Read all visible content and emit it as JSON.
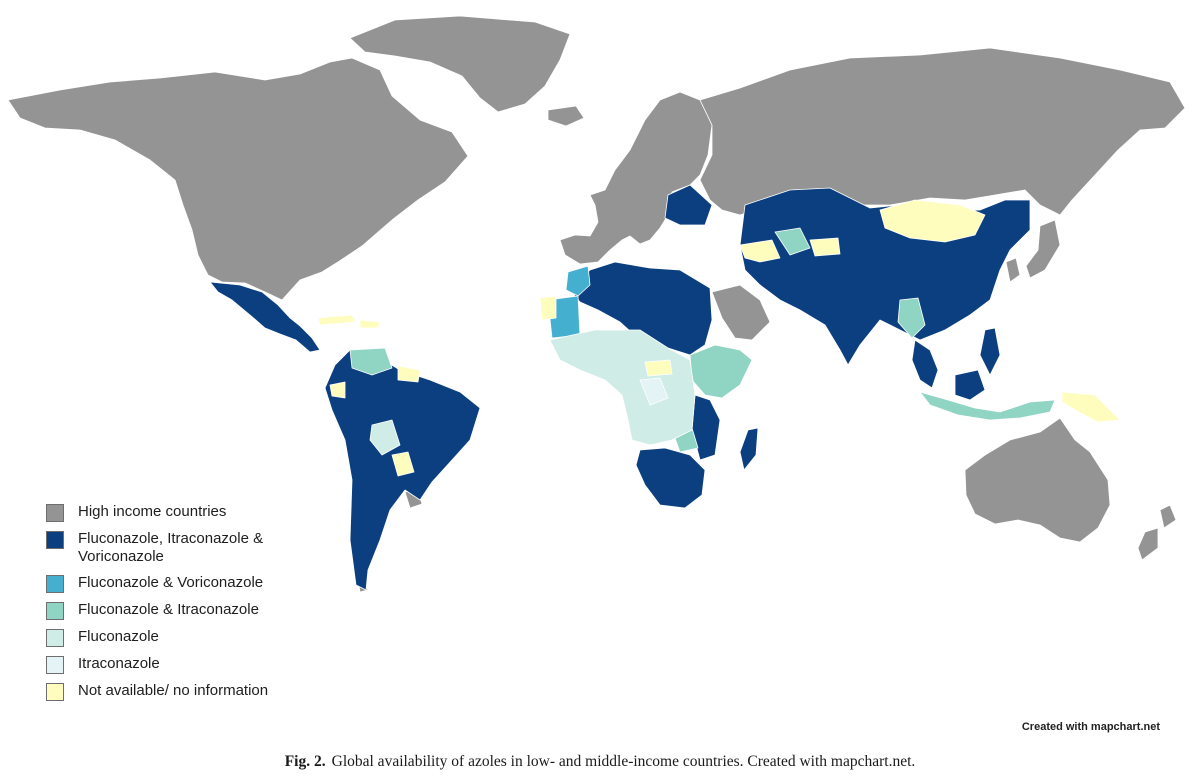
{
  "colors": {
    "high": "#949494",
    "fiv": "#0b3f80",
    "fv": "#45afd0",
    "fi": "#90d4c4",
    "f": "#cfece6",
    "i": "#e4f3f5",
    "na": "#fefdbd"
  },
  "legend": [
    {
      "label": "High income countries",
      "color_key": "high"
    },
    {
      "label": "Fluconazole, Itraconazole & Voriconazole",
      "color_key": "fiv"
    },
    {
      "label": "Fluconazole & Voriconazole",
      "color_key": "fv"
    },
    {
      "label": "Fluconazole & Itraconazole",
      "color_key": "fi"
    },
    {
      "label": "Fluconazole",
      "color_key": "f"
    },
    {
      "label": "Itraconazole",
      "color_key": "i"
    },
    {
      "label": "Not available/ no information",
      "color_key": "na"
    }
  ],
  "credit": "Created with mapchart.net",
  "caption": {
    "label": "Fig. 2.",
    "text": "Global availability of azoles in low- and middle-income countries. Created with mapchart.net."
  }
}
